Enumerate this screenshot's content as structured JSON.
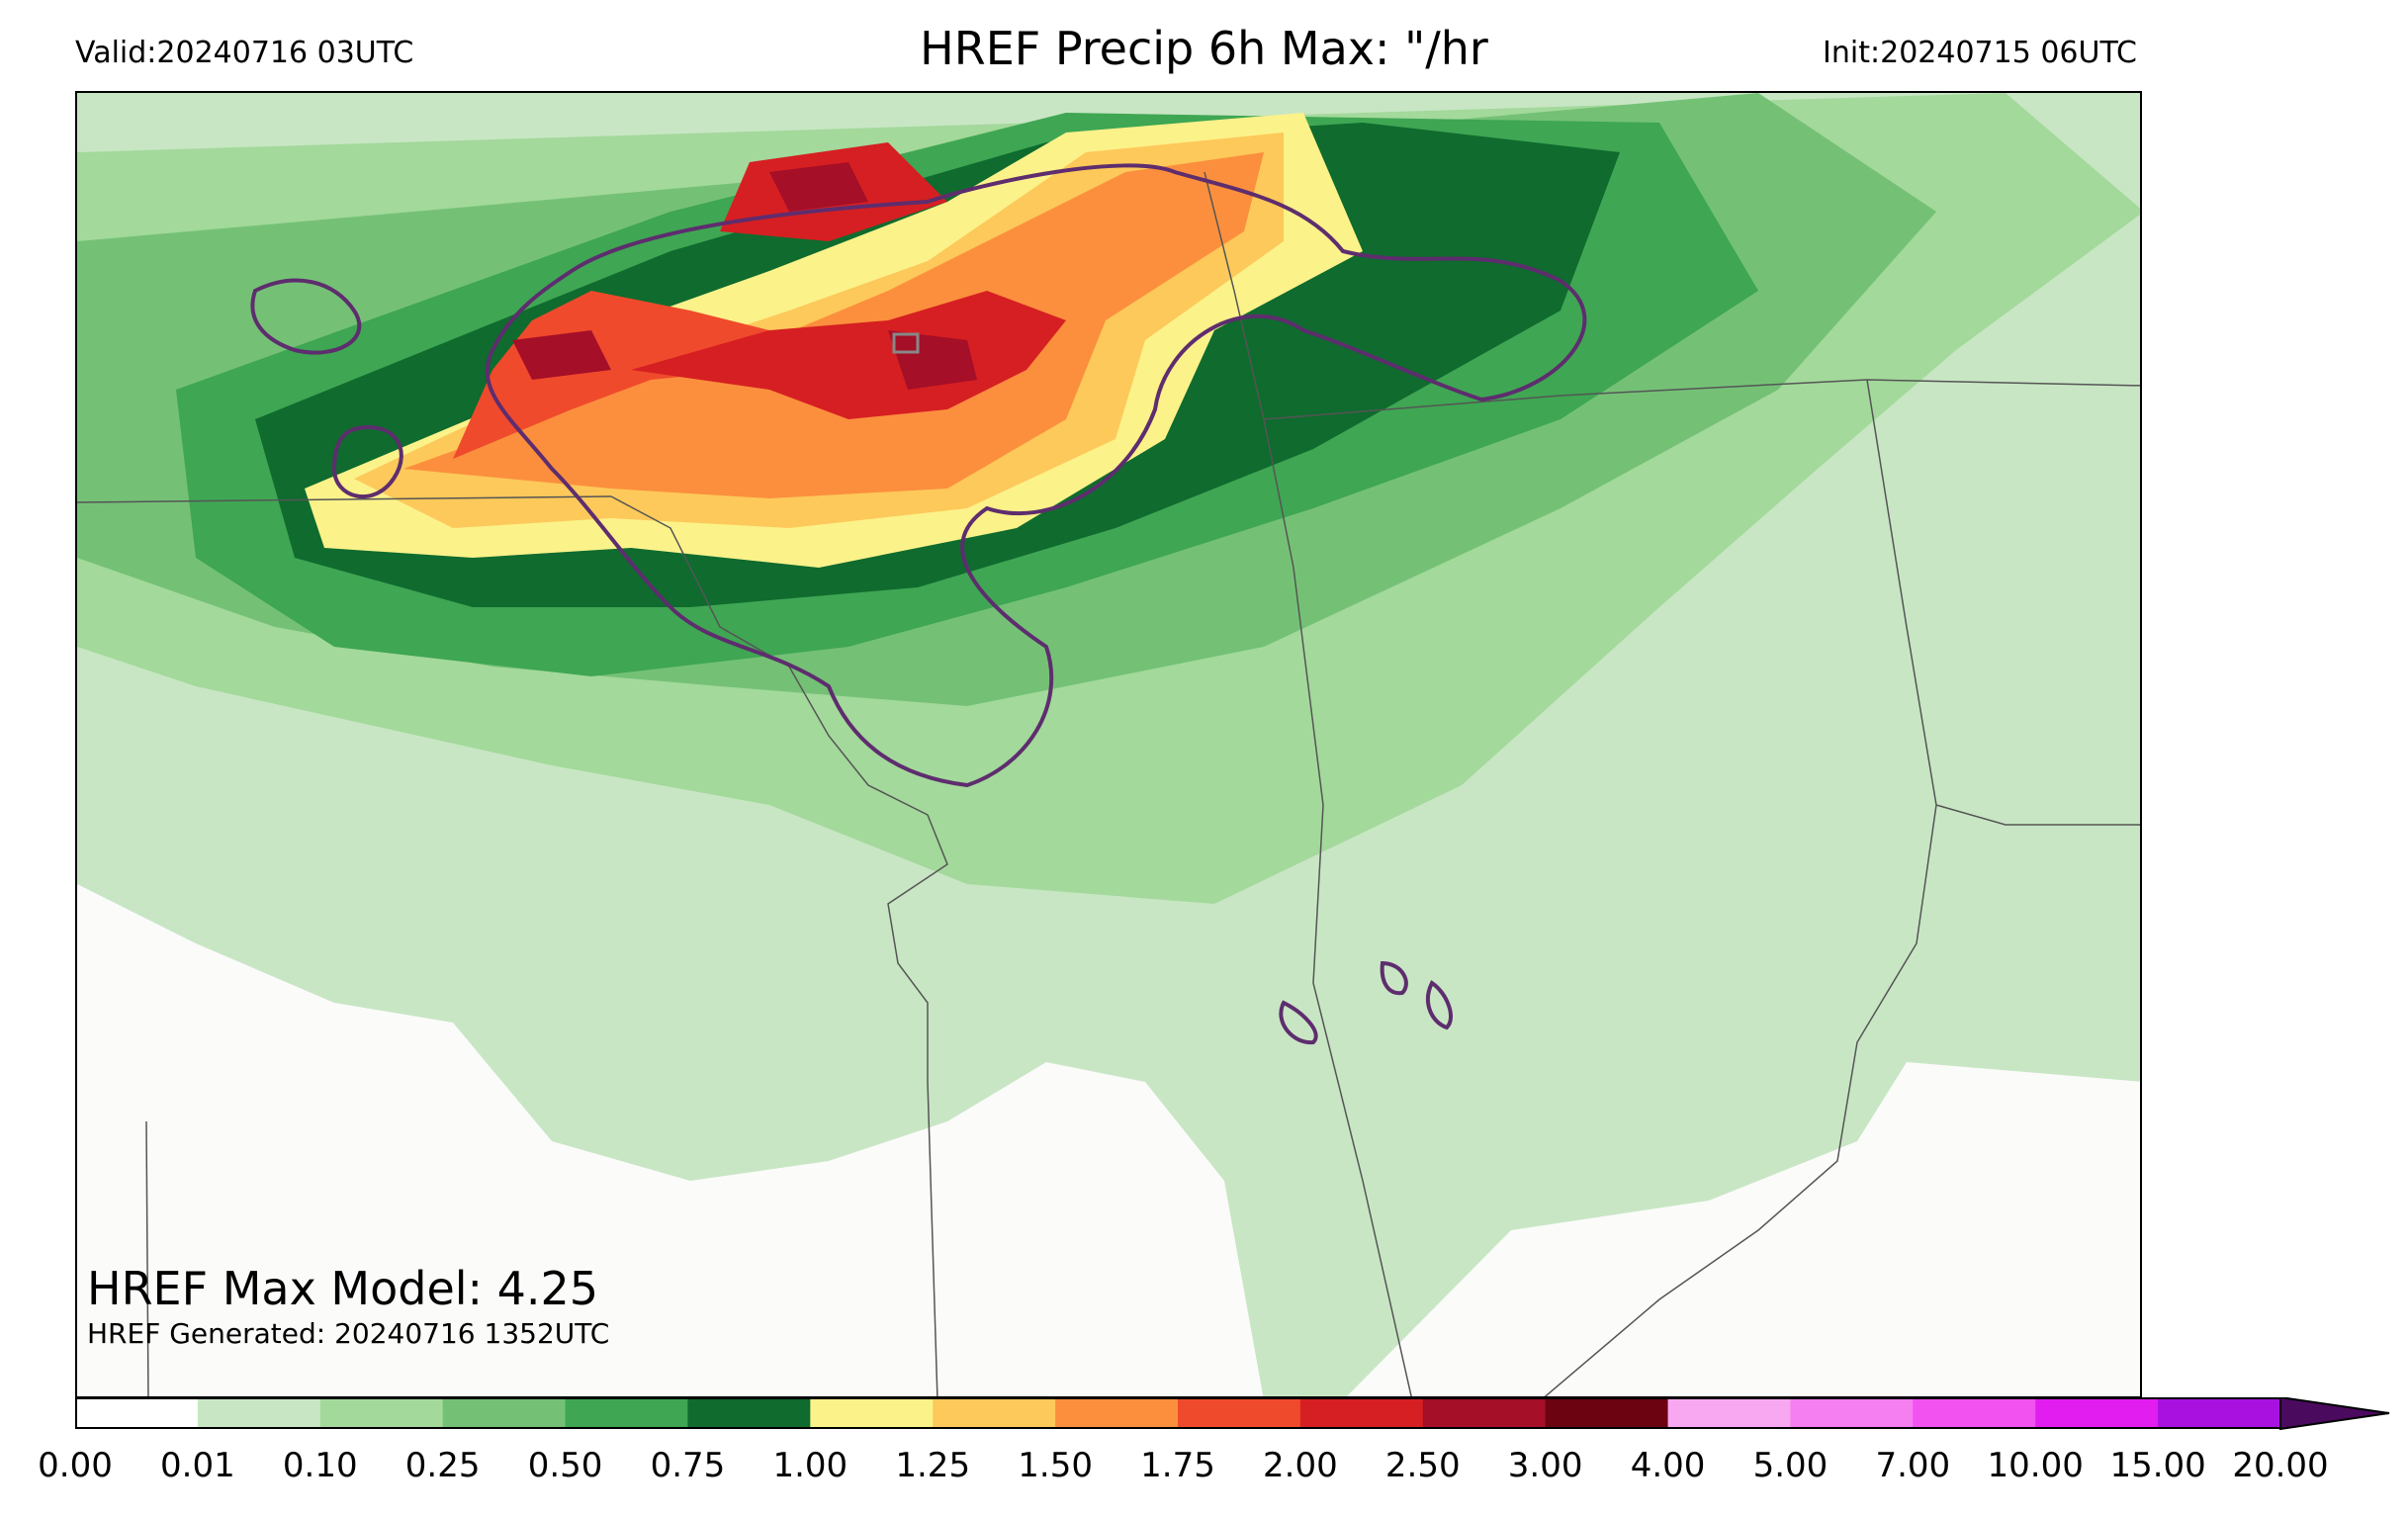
{
  "header": {
    "valid": "Valid:20240716 03UTC",
    "title": "HREF Precip 6h Max: \"/hr",
    "init": "Init:20240715 06UTC"
  },
  "map": {
    "max_model_label": "HREF Max Model: 4.25",
    "generated_label": "HREF Generated: 20240716 1352UTC",
    "contour_color": "#5e2d6e",
    "state_line_color": "#555555"
  },
  "colorbar": {
    "levels": [
      "0.00",
      "0.01",
      "0.10",
      "0.25",
      "0.50",
      "0.75",
      "1.00",
      "1.25",
      "1.50",
      "1.75",
      "2.00",
      "2.50",
      "3.00",
      "4.00",
      "5.00",
      "7.00",
      "10.00",
      "15.00",
      "20.00"
    ],
    "colors": [
      "#ffffff",
      "#c8e6c4",
      "#a3d99b",
      "#74c176",
      "#3fa653",
      "#0f6b2e",
      "#fbf28a",
      "#fdc95a",
      "#fb8f3d",
      "#f04a2c",
      "#d61f22",
      "#a50f28",
      "#6b0311",
      "#f7a8f0",
      "#f57ff0",
      "#f152f0",
      "#e11df0",
      "#a811e0"
    ],
    "extend_color": "#4a0a5e"
  }
}
